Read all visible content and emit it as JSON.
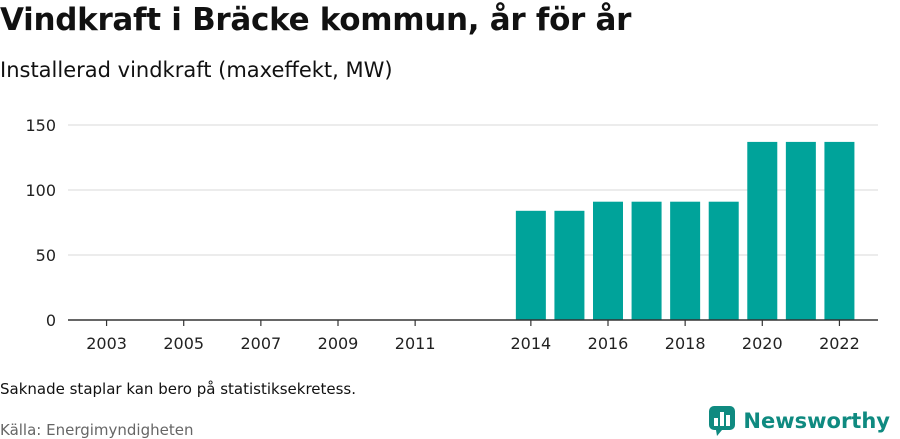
{
  "header": {
    "title": "Vindkraft i Bräcke kommun, år för år",
    "subtitle": "Installerad vindkraft (maxeffekt, MW)"
  },
  "footer": {
    "note": "Saknade staplar kan bero på statistiksekretess.",
    "source": "Källa: Energimyndigheten",
    "brand": "Newsworthy"
  },
  "colors": {
    "bar": "#00a39a",
    "grid": "#d9d9d9",
    "axis": "#333333",
    "brand": "#0f8a80"
  },
  "chart_data": {
    "type": "bar",
    "title": "Vindkraft i Bräcke kommun, år för år",
    "subtitle": "Installerad vindkraft (maxeffekt, MW)",
    "xlabel": "",
    "ylabel": "",
    "ylim": [
      0,
      150
    ],
    "yticks": [
      0,
      50,
      100,
      150
    ],
    "xlim": [
      2002,
      2023
    ],
    "xticks": [
      2003,
      2005,
      2007,
      2009,
      2011,
      2014,
      2016,
      2018,
      2020,
      2022
    ],
    "grid": true,
    "legend": "none",
    "categories": [
      2014,
      2015,
      2016,
      2017,
      2018,
      2019,
      2020,
      2021,
      2022
    ],
    "values": [
      84,
      84,
      91,
      91,
      91,
      91,
      137,
      137,
      137
    ]
  }
}
